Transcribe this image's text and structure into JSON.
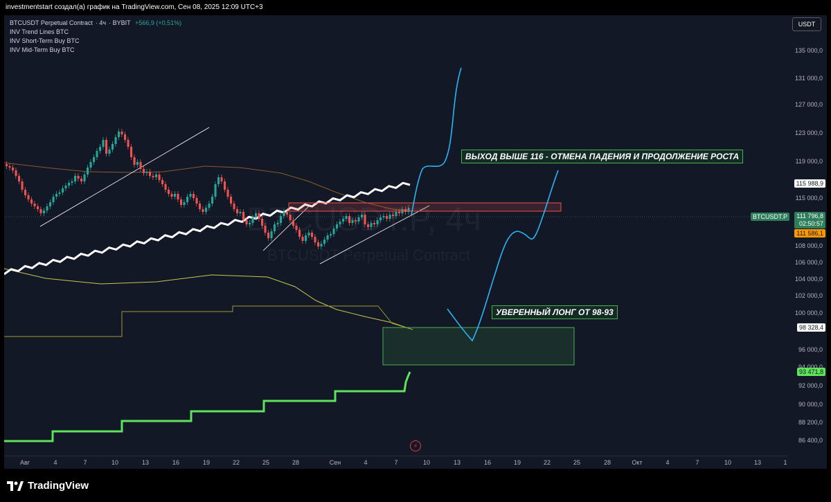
{
  "header": {
    "caption": "investmentstart создал(а) график на TradingView.com, Сен 08, 2025 12:09 UTC+3"
  },
  "legend": {
    "symbol": "BTCUSDT Perpetual Contract",
    "interval": "4ч",
    "exchange": "BYBIT",
    "change": "+566,9 (+0,51%)",
    "indicators": [
      "INV Trend Lines BTC",
      "INV Short-Term Buy BTC",
      "INV Mid-Term Buy BTC"
    ]
  },
  "currency": "USDT",
  "watermark": {
    "symbol": "BTCUSDT.P, 4ч",
    "description": "BTCUSDT Perpetual Contract"
  },
  "price_axis": {
    "ticks": [
      "135 000,0",
      "131 000,0",
      "127 000,0",
      "123 000,0",
      "119 000,0",
      "115 000,0",
      "108 000,0",
      "106 000,0",
      "104 000,0",
      "102 000,0",
      "100 000,0",
      "96 000,0",
      "94 000,0",
      "92 000,0",
      "90 000,0",
      "88 200,0",
      "86 400,0"
    ],
    "badges": {
      "level_high": "115 988,9",
      "symbol_tag": "BTCUSDT.P",
      "last_price": "111 796,8",
      "countdown": "02:50:57",
      "orange_level": "111 586,1",
      "yellow_level": "98 328,4",
      "green_level": "93 471,8"
    }
  },
  "time_axis": {
    "ticks": [
      "Авг",
      "4",
      "7",
      "10",
      "13",
      "16",
      "19",
      "22",
      "25",
      "28",
      "Сен",
      "4",
      "7",
      "10",
      "13",
      "16",
      "19",
      "22",
      "25",
      "28",
      "Окт",
      "4",
      "7",
      "10",
      "13",
      "1"
    ]
  },
  "annotations": {
    "breakout": "ВЫХОД ВЫШЕ 116 - ОТМЕНА ПАДЕНИЯ И ПРОДОЛЖЕНИЕ РОСТА",
    "long_zone": "УВЕРЕННЫЙ ЛОНГ ОТ 98-93"
  },
  "colors": {
    "background": "#121826",
    "bullish": "#26a69a",
    "bearish": "#ef5350",
    "projection": "#29b6f6",
    "green_band": "#5ee35a",
    "yellow_band": "#c8c84a",
    "orange_band": "#ff9800"
  },
  "footer": {
    "brand": "TradingView"
  }
}
